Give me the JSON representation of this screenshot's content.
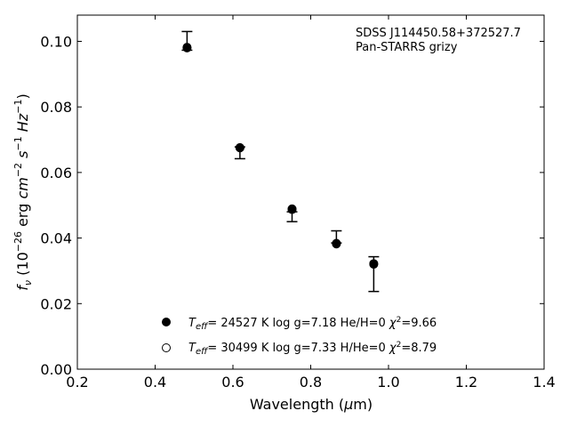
{
  "chart_data": {
    "type": "scatter",
    "xlabel": "Wavelength (μm)",
    "ylabel": "f_ν (10^-26 erg cm^-2 s^-1 Hz^-1)",
    "xlim": [
      0.2,
      1.4
    ],
    "ylim": [
      0.0,
      0.108
    ],
    "x_ticks": [
      "0.2",
      "0.4",
      "0.6",
      "0.8",
      "1.0",
      "1.2",
      "1.4"
    ],
    "y_ticks": [
      "0.00",
      "0.02",
      "0.04",
      "0.06",
      "0.08",
      "0.10"
    ],
    "grid": false,
    "annotation": {
      "line1": "SDSS J114450.58+372527.7",
      "line2": "Pan-STARRS grizy"
    },
    "observed": {
      "name": "Pan-STARRS grizy",
      "x": [
        0.482,
        0.618,
        0.752,
        0.866,
        0.962
      ],
      "y": [
        0.0985,
        0.0674,
        0.0476,
        0.0395,
        0.0325
      ],
      "yerr_low": [
        0.0012,
        0.0032,
        0.0026,
        0.001,
        0.0088
      ],
      "yerr_high": [
        0.0045,
        0.0004,
        0.0004,
        0.0027,
        0.0018
      ]
    },
    "models": [
      {
        "name": "Teff= 24527 K  log g=7.18  He/H=0  χ²=9.66",
        "marker": "filled",
        "teff_label": "= 24527 K  log g=7.18  He/H=0  ",
        "chi_value": "=9.66",
        "x": [
          0.482,
          0.618,
          0.752,
          0.866,
          0.962
        ],
        "y": [
          0.098,
          0.0675,
          0.0487,
          0.0382,
          0.032
        ]
      },
      {
        "name": "Teff= 30499 K  log g=7.33  H/He=0  χ²=8.79",
        "marker": "open",
        "teff_label": "= 30499 K  log g=7.33  H/He=0  ",
        "chi_value": "=8.79",
        "x": [
          0.482,
          0.618,
          0.752,
          0.866,
          0.962
        ],
        "y": [
          0.0982,
          0.0676,
          0.0489,
          0.0384,
          0.0322
        ]
      }
    ]
  }
}
